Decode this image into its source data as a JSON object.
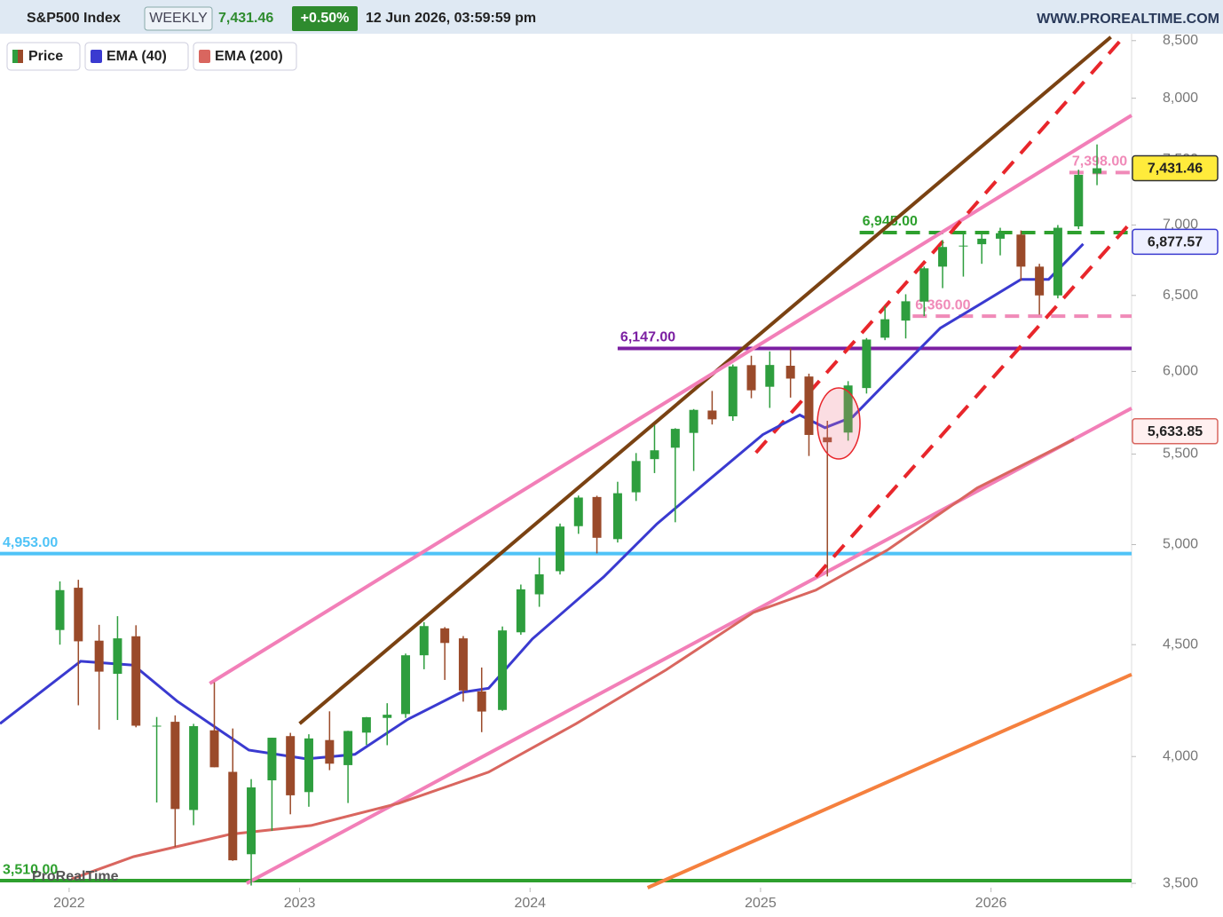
{
  "chart_data": {
    "type": "candlestick",
    "title": "S&P500 Index",
    "timeframe": "WEEKLY",
    "last": "7,431.46",
    "change": "+0.50%",
    "datetime": "12 Jun 2026, 03:59:59 pm",
    "source": "WWW.PROREALTIME.COM",
    "watermark": "ProRealTime",
    "price_name": "Price",
    "log_scale": true,
    "up_color": "#2e9e3e",
    "down_color": "#9a4a2a",
    "xlim": [
      2021.7,
      2026.61
    ],
    "xticks": [
      2022,
      2023,
      2024,
      2025,
      2026
    ],
    "ylim": [
      3484,
      8562
    ],
    "yticks": [
      {
        "value": 3500,
        "label": "3,500"
      },
      {
        "value": 4000,
        "label": "4,000"
      },
      {
        "value": 4500,
        "label": "4,500"
      },
      {
        "value": 5000,
        "label": "5,000"
      },
      {
        "value": 5500,
        "label": "5,500"
      },
      {
        "value": 6000,
        "label": "6,000"
      },
      {
        "value": 6500,
        "label": "6,500"
      },
      {
        "value": 7000,
        "label": "7,000"
      },
      {
        "value": 7500,
        "label": "7,500"
      },
      {
        "value": 8000,
        "label": "8,000"
      },
      {
        "value": 8500,
        "label": "8,500"
      }
    ],
    "x": [
      2021.96,
      2022.04,
      2022.13,
      2022.21,
      2022.29,
      2022.38,
      2022.46,
      2022.54,
      2022.63,
      2022.71,
      2022.79,
      2022.88,
      2022.96,
      2023.04,
      2023.13,
      2023.21,
      2023.29,
      2023.38,
      2023.46,
      2023.54,
      2023.63,
      2023.71,
      2023.79,
      2023.88,
      2023.96,
      2024.04,
      2024.13,
      2024.21,
      2024.29,
      2024.38,
      2024.46,
      2024.54,
      2024.63,
      2024.71,
      2024.79,
      2024.88,
      2024.96,
      2025.04,
      2025.13,
      2025.21,
      2025.29,
      2025.38,
      2025.46,
      2025.54,
      2025.63,
      2025.71,
      2025.79,
      2025.88,
      2025.96,
      2026.04,
      2026.13,
      2026.21,
      2026.29,
      2026.38,
      2026.46
    ],
    "open": [
      4570,
      4778,
      4519,
      4364,
      4540,
      4130,
      4149,
      3781,
      4112,
      3936,
      3609,
      3901,
      4087,
      3853,
      4070,
      3964,
      4102,
      4166,
      4183,
      4450,
      4578,
      4530,
      4284,
      4201,
      4559,
      4745,
      4862,
      5098,
      5257,
      5029,
      5283,
      5471,
      5537,
      5624,
      5758,
      5723,
      6040,
      5904,
      6036,
      5968,
      5598,
      5626,
      5896,
      6217,
      6330,
      6458,
      6700,
      6850,
      6860,
      6900,
      6930,
      6700,
      6500,
      6990,
      7390
    ],
    "high": [
      4810,
      4818,
      4595,
      4637,
      4593,
      4170,
      4177,
      4140,
      4325,
      4120,
      3906,
      4080,
      4101,
      4095,
      4195,
      4110,
      4170,
      4231,
      4458,
      4608,
      4584,
      4541,
      4393,
      4587,
      4794,
      4932,
      5112,
      5265,
      5264,
      5342,
      5506,
      5670,
      5652,
      5767,
      5878,
      6044,
      6100,
      6128,
      6147,
      5986,
      5696,
      5939,
      6215,
      6427,
      6508,
      6700,
      6890,
      6945,
      6940,
      6980,
      6960,
      6720,
      7000,
      7420,
      7620
    ],
    "low": [
      4500,
      4222,
      4115,
      4157,
      4125,
      3811,
      3637,
      3721,
      3955,
      3584,
      3492,
      3699,
      3764,
      3794,
      3943,
      3809,
      4049,
      4048,
      4166,
      4385,
      4336,
      4238,
      4104,
      4197,
      4547,
      4683,
      4845,
      5057,
      4954,
      5011,
      5235,
      5391,
      5119,
      5403,
      5674,
      5696,
      5833,
      5774,
      5837,
      5489,
      4835,
      5578,
      5862,
      6201,
      6212,
      6360,
      6550,
      6630,
      6720,
      6780,
      6600,
      6370,
      6480,
      6970,
      7300
    ],
    "close": [
      4766,
      4516,
      4374,
      4530,
      4132,
      4132,
      3785,
      4130,
      3955,
      3586,
      3872,
      4080,
      3840,
      4077,
      3970,
      4109,
      4169,
      4180,
      4450,
      4589,
      4508,
      4288,
      4194,
      4568,
      4770,
      4846,
      5096,
      5254,
      5036,
      5278,
      5460,
      5522,
      5648,
      5762,
      5705,
      6032,
      5882,
      6041,
      5955,
      5612,
      5569,
      5912,
      6205,
      6339,
      6460,
      6688,
      6840,
      6850,
      6900,
      6940,
      6700,
      6500,
      6980,
      7380,
      7431.46
    ],
    "series": [
      {
        "name": "EMA (200)",
        "color": "#d9665f",
        "x": [
          2022.01,
          2022.28,
          2022.7,
          2023.05,
          2023.43,
          2023.82,
          2024.2,
          2024.59,
          2024.97,
          2025.24,
          2025.55,
          2025.94,
          2026.36
        ],
        "values": [
          3516,
          3600,
          3686,
          3720,
          3808,
          3935,
          4141,
          4382,
          4656,
          4766,
          4971,
          5307,
          5586
        ]
      },
      {
        "name": "EMA (40)",
        "color": "#3a3ad0",
        "x": [
          2021.7,
          2022.05,
          2022.28,
          2022.47,
          2022.78,
          2023.03,
          2023.24,
          2023.47,
          2023.7,
          2023.82,
          2024.01,
          2024.32,
          2024.55,
          2024.78,
          2025.01,
          2025.17,
          2025.28,
          2025.4,
          2025.55,
          2025.78,
          2025.94,
          2026.13,
          2026.25,
          2026.4
        ],
        "values": [
          4141,
          4422,
          4404,
          4239,
          4027,
          3990,
          4009,
          4160,
          4279,
          4298,
          4527,
          4833,
          5110,
          5357,
          5614,
          5731,
          5655,
          5720,
          5937,
          6280,
          6428,
          6611,
          6611,
          6862
        ]
      }
    ],
    "trendlines": [
      {
        "color": "#7a4212",
        "dashed": false,
        "x": [
          2023.0,
          2026.52
        ],
        "y": [
          4141,
          8532
        ]
      },
      {
        "color": "#f27fb8",
        "dashed": false,
        "x": [
          2022.61,
          2026.61
        ],
        "y": [
          4320,
          7857
        ]
      },
      {
        "color": "#f27fb8",
        "dashed": false,
        "x": [
          2022.77,
          2026.61
        ],
        "y": [
          3500,
          5772
        ]
      },
      {
        "color": "#f5803e",
        "dashed": false,
        "x": [
          2024.51,
          2026.61
        ],
        "y": [
          3484,
          4361
        ]
      },
      {
        "color": "#e8262b",
        "dashed": true,
        "x": [
          2024.98,
          2026.57
        ],
        "y": [
          5508,
          8520
        ]
      },
      {
        "color": "#e8262b",
        "dashed": true,
        "x": [
          2025.24,
          2026.61
        ],
        "y": [
          4833,
          7025
        ]
      }
    ],
    "levels": [
      {
        "value": 6147,
        "label": "6,147.00",
        "color": "#7b1fa2",
        "dashed": false,
        "from": 2024.38
      },
      {
        "value": 4953,
        "label": "4,953.00",
        "color": "#4fc3f7",
        "dashed": false,
        "from": 2021.7
      },
      {
        "value": 3510,
        "label": "3,510.00",
        "color": "#2ea02e",
        "dashed": false,
        "from": 2021.7
      },
      {
        "value": 6945,
        "label": "6,945.00",
        "color": "#2ea02e",
        "dashed": true,
        "from": 2025.43
      },
      {
        "value": 6360,
        "label": "6,360.00",
        "color": "#f08ab8",
        "dashed": true,
        "from": 2025.66
      },
      {
        "value": 7398,
        "label": "7,398.00",
        "color": "#f08ab8",
        "dashed": true,
        "from": 2026.34
      }
    ],
    "price_labels": [
      {
        "value": 7431.46,
        "label": "7,431.46",
        "color": "#ffeb3b",
        "border": "#333"
      },
      {
        "value": 6877.57,
        "label": "6,877.57",
        "color": "#eef0ff",
        "border": "#3a3ad0"
      },
      {
        "value": 5633.85,
        "label": "5,633.85",
        "color": "#fff0f0",
        "border": "#d9665f"
      }
    ]
  }
}
